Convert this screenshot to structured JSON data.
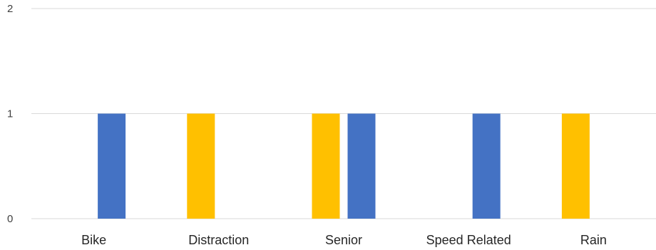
{
  "chart_data": {
    "type": "bar",
    "categories": [
      "Bike",
      "Distraction",
      "Senior",
      "Speed Related",
      "Rain"
    ],
    "series": [
      {
        "color": "#ffc000",
        "values": [
          0,
          1,
          1,
          0,
          1
        ]
      },
      {
        "color": "#4472c4",
        "values": [
          1,
          0,
          1,
          1,
          0
        ]
      }
    ],
    "ylim": [
      0,
      2
    ],
    "yticks": [
      0,
      1,
      2
    ],
    "grid": true,
    "legend": "none"
  }
}
